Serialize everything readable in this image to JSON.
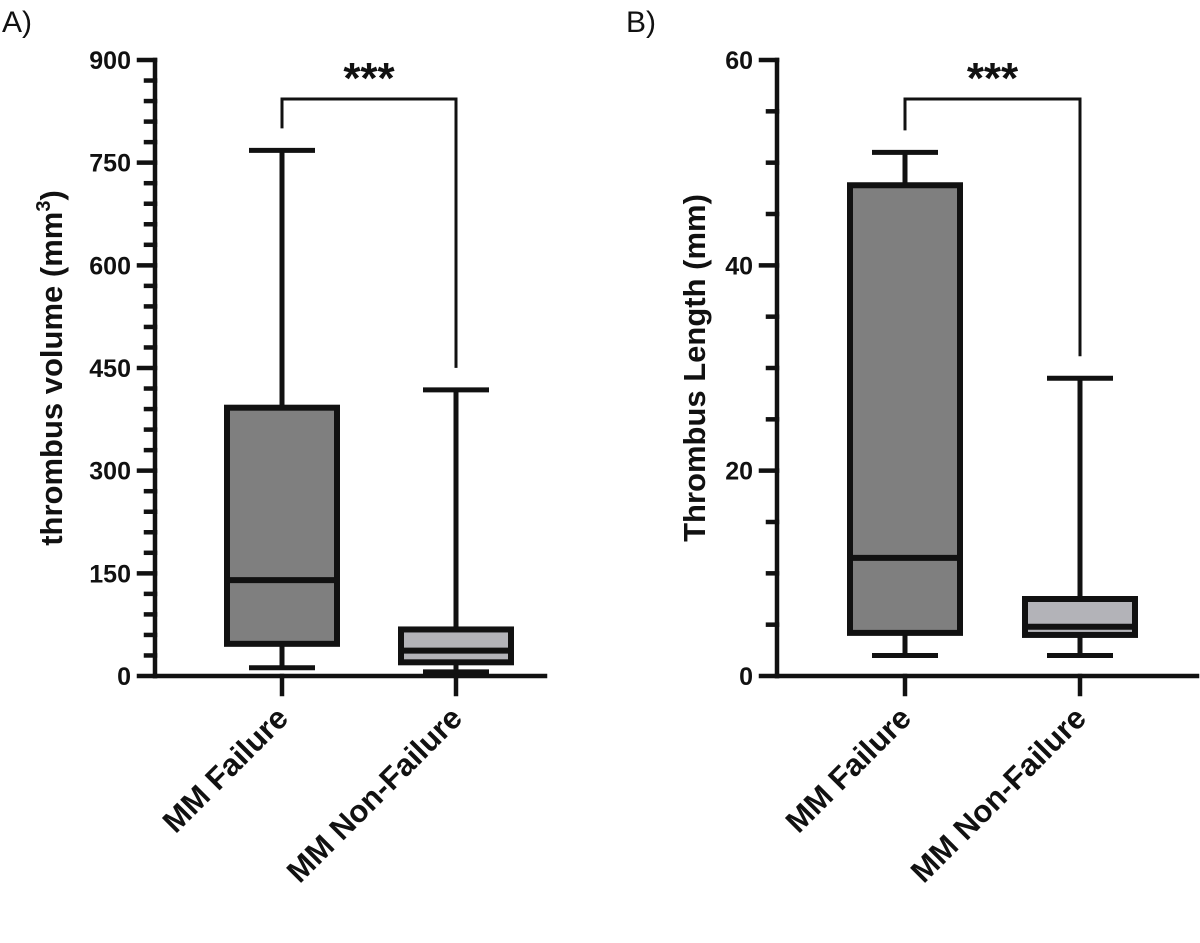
{
  "chart_data": [
    {
      "type": "box",
      "panel_label": "A)",
      "ylabel": "thrombus volume (mm",
      "ylabel_superscript": "3",
      "ylabel_suffix": ")",
      "ylim": [
        0,
        900
      ],
      "yticks": [
        0,
        150,
        300,
        450,
        600,
        750,
        900
      ],
      "categories": [
        "MM Failure",
        "MM Non-Failure"
      ],
      "boxes": [
        {
          "category": "MM Failure",
          "min": 12,
          "q1": 47,
          "median": 140,
          "q3": 392,
          "max": 768,
          "fill": "#7f7f7f"
        },
        {
          "category": "MM Non-Failure",
          "min": 6,
          "q1": 20,
          "median": 37,
          "q3": 68,
          "max": 418,
          "fill": "#b3b3b8"
        }
      ],
      "significance": {
        "label": "***",
        "between": [
          "MM Failure",
          "MM Non-Failure"
        ],
        "bracket_y": 843
      }
    },
    {
      "type": "box",
      "panel_label": "B)",
      "ylabel": "Thrombus Length (mm)",
      "ylim": [
        0,
        60
      ],
      "yticks": [
        0,
        20,
        40,
        60
      ],
      "categories": [
        "MM Failure",
        "MM Non-Failure"
      ],
      "boxes": [
        {
          "category": "MM Failure",
          "min": 2,
          "q1": 4.2,
          "median": 11.5,
          "q3": 47.8,
          "max": 51,
          "fill": "#7f7f7f"
        },
        {
          "category": "MM Non-Failure",
          "min": 2,
          "q1": 4,
          "median": 4.8,
          "q3": 7.5,
          "max": 29,
          "fill": "#b3b3b8"
        }
      ],
      "significance": {
        "label": "***",
        "between": [
          "MM Failure",
          "MM Non-Failure"
        ],
        "bracket_y": 56.2
      }
    }
  ]
}
